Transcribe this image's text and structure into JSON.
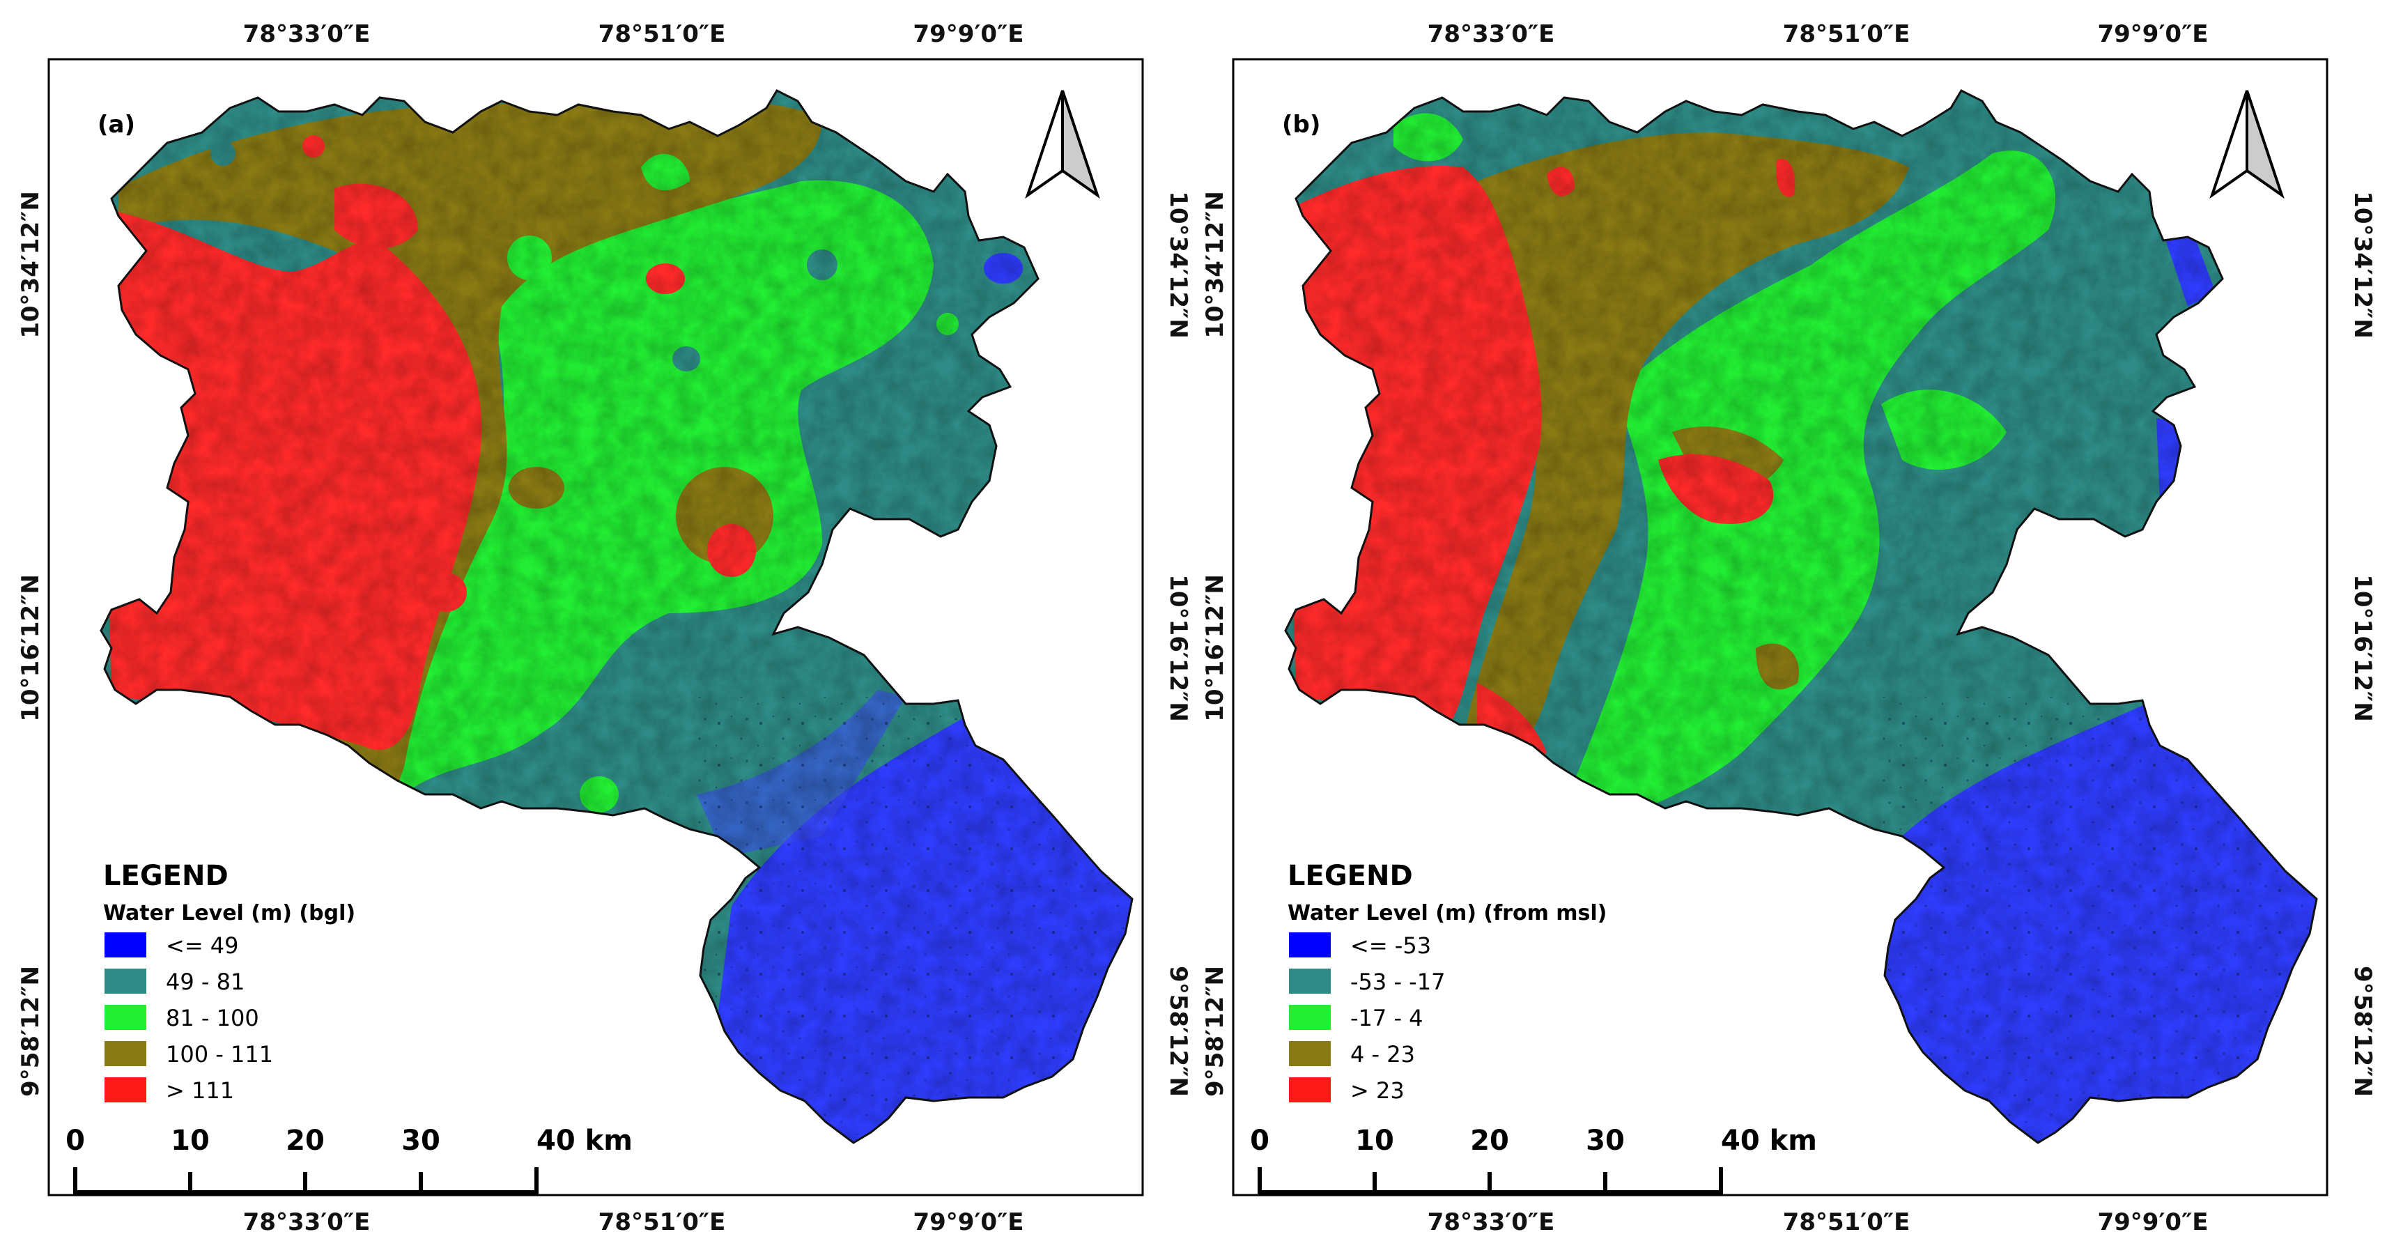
{
  "maps": [
    {
      "label": "(a)",
      "legend": {
        "title": "LEGEND",
        "subtitle": "Water Level (m) (bgl)",
        "items": [
          {
            "label": "<= 49",
            "color": "#0000ff"
          },
          {
            "label": "49 - 81",
            "color": "#2e8b86"
          },
          {
            "label": "81 - 100",
            "color": "#22ee33"
          },
          {
            "label": "100 - 111",
            "color": "#8a7a14"
          },
          {
            "label": "> 111",
            "color": "#ff1a1a"
          }
        ]
      }
    },
    {
      "label": "(b)",
      "legend": {
        "title": "LEGEND",
        "subtitle": "Water Level (m) (from msl)",
        "items": [
          {
            "label": "<= -53",
            "color": "#0000ff"
          },
          {
            "label": "-53 - -17",
            "color": "#2e8b86"
          },
          {
            "label": "-17 - 4",
            "color": "#22ee33"
          },
          {
            "label": "4 - 23",
            "color": "#8a7a14"
          },
          {
            "label": "> 23",
            "color": "#ff1a1a"
          }
        ]
      }
    }
  ],
  "coords": {
    "lon": [
      "78°33′0″E",
      "78°51′0″E",
      "79°9′0″E"
    ],
    "lat": [
      "10°34′12″N",
      "10°16′12″N",
      "9°58′12″N"
    ]
  },
  "scalebar": {
    "ticks": [
      "0",
      "10",
      "20",
      "30",
      "40 km"
    ]
  }
}
